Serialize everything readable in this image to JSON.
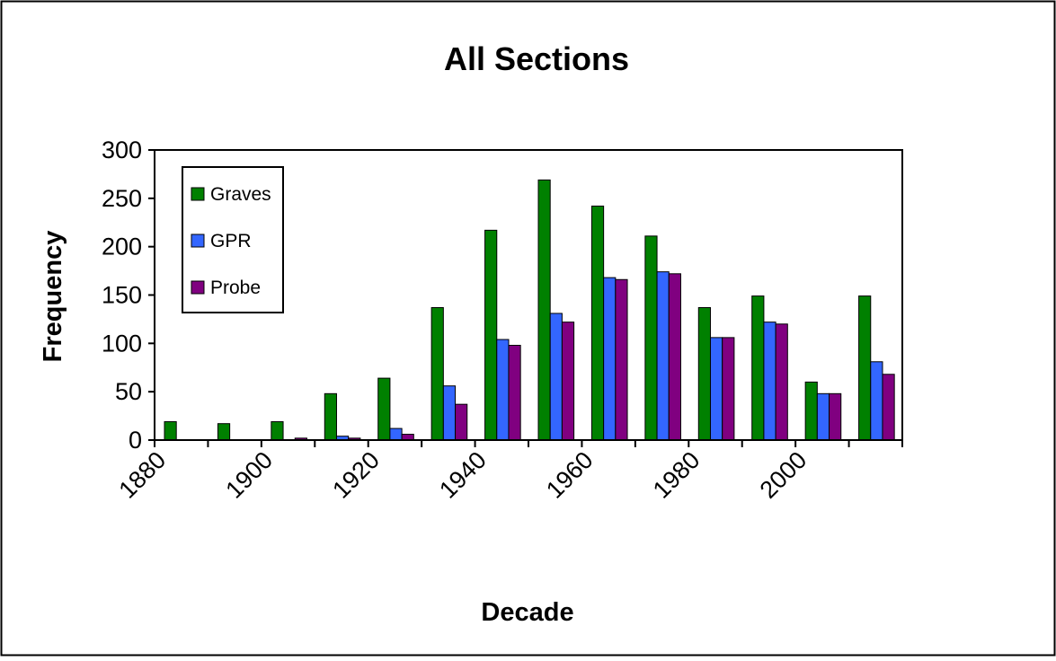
{
  "chart_data": {
    "type": "bar",
    "title": "All Sections",
    "xlabel": "Decade",
    "ylabel": "Frequency",
    "ylim": [
      0,
      300
    ],
    "yticks": [
      "0",
      "50",
      "100",
      "150",
      "200",
      "250",
      "300"
    ],
    "xtick_labels": [
      "1880",
      "1900",
      "1920",
      "1940",
      "1960",
      "1980",
      "2000"
    ],
    "categories": [
      "1880",
      "1890",
      "1900",
      "1910",
      "1920",
      "1930",
      "1940",
      "1950",
      "1960",
      "1970",
      "1980",
      "1990",
      "2000",
      "2010"
    ],
    "series": [
      {
        "name": "Graves",
        "color": "#008000",
        "values": [
          19,
          17,
          19,
          48,
          64,
          137,
          217,
          269,
          242,
          211,
          137,
          149,
          60,
          149
        ]
      },
      {
        "name": "GPR",
        "color": "#3366ff",
        "values": [
          0,
          0,
          0,
          4,
          12,
          56,
          104,
          131,
          168,
          174,
          106,
          122,
          48,
          81
        ]
      },
      {
        "name": "Probe",
        "color": "#800080",
        "values": [
          0,
          0,
          2,
          2,
          6,
          37,
          98,
          122,
          166,
          172,
          106,
          120,
          48,
          68
        ]
      }
    ],
    "grid": false,
    "legend": "top-left"
  }
}
